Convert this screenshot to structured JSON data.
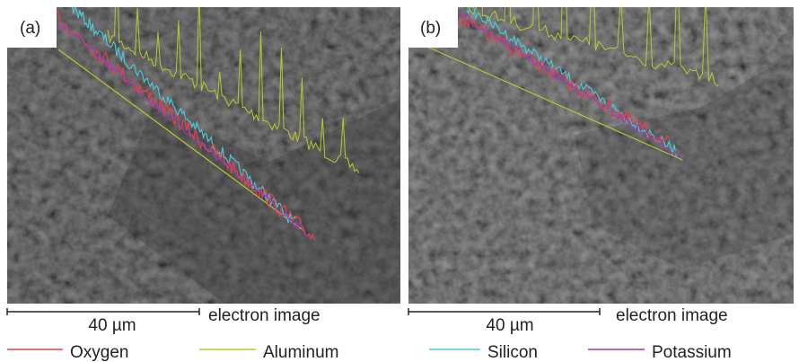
{
  "panels": [
    {
      "label": "(a)",
      "scale_bar": "40 µm",
      "caption": "electron image"
    },
    {
      "label": "(b)",
      "scale_bar": "40 µm",
      "caption": "electron image"
    }
  ],
  "legend": [
    {
      "name": "Oxygen",
      "color": "#e8414a"
    },
    {
      "name": "Aluminum",
      "color": "#b8c82a"
    },
    {
      "name": "Silicon",
      "color": "#4cc6d6"
    },
    {
      "name": "Potassium",
      "color": "#9a3fb0"
    }
  ]
}
